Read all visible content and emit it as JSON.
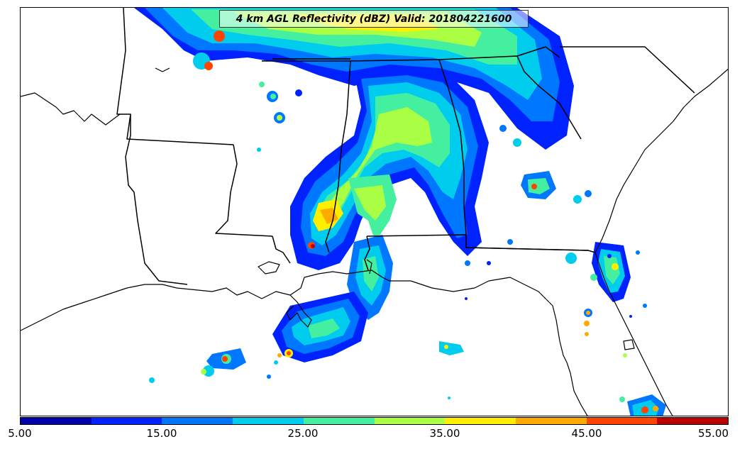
{
  "title": "4 km AGL Reflectivity (dBZ) Valid: 201804221600",
  "colorbar": {
    "colors": [
      "#0000aa",
      "#0022ff",
      "#0077ff",
      "#00ccee",
      "#44f0a0",
      "#aaff44",
      "#ffee00",
      "#ffaa00",
      "#ff4400",
      "#bb0000"
    ],
    "tick_labels": [
      "5.00",
      "15.00",
      "25.00",
      "35.00",
      "45.00",
      "55.00"
    ],
    "range": [
      5,
      55
    ],
    "interval": 5
  },
  "map": {
    "region": "Southeastern United States",
    "variable": "Reflectivity (dBZ)",
    "basemap": [
      "coastlines",
      "state borders"
    ]
  }
}
